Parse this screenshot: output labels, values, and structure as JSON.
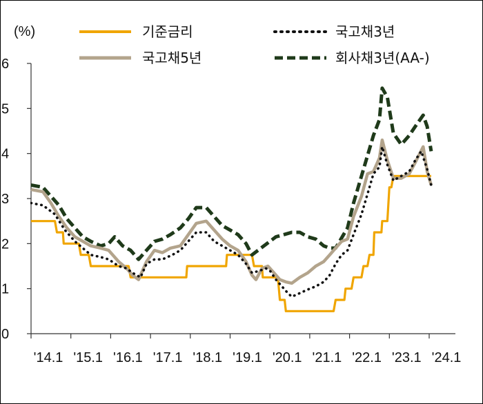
{
  "chart_data": {
    "type": "line",
    "title": "",
    "xlabel": "",
    "ylabel": "(%)",
    "ylim": [
      0,
      6
    ],
    "yticks": [
      "0",
      "1",
      "2",
      "3",
      "4",
      "5",
      "6"
    ],
    "xticks": [
      "'14.1",
      "'15.1",
      "'16.1",
      "'17.1",
      "'18.1",
      "'19.1",
      "'20.1",
      "'21.1",
      "'22.1",
      "'23.1",
      "'24.1"
    ],
    "grid": false,
    "legend_position": "top",
    "series": [
      {
        "name": "기준금리",
        "color": "#F0A500",
        "style": "solid",
        "points": [
          [
            2014.0,
            2.5
          ],
          [
            2014.6,
            2.5
          ],
          [
            2014.65,
            2.25
          ],
          [
            2014.8,
            2.25
          ],
          [
            2014.82,
            2.0
          ],
          [
            2015.2,
            2.0
          ],
          [
            2015.25,
            1.75
          ],
          [
            2015.45,
            1.75
          ],
          [
            2015.5,
            1.5
          ],
          [
            2016.45,
            1.5
          ],
          [
            2016.5,
            1.25
          ],
          [
            2017.9,
            1.25
          ],
          [
            2017.92,
            1.5
          ],
          [
            2018.9,
            1.5
          ],
          [
            2018.92,
            1.75
          ],
          [
            2019.55,
            1.75
          ],
          [
            2019.6,
            1.5
          ],
          [
            2019.8,
            1.5
          ],
          [
            2019.82,
            1.25
          ],
          [
            2020.2,
            1.25
          ],
          [
            2020.25,
            0.75
          ],
          [
            2020.37,
            0.75
          ],
          [
            2020.4,
            0.5
          ],
          [
            2021.6,
            0.5
          ],
          [
            2021.65,
            0.75
          ],
          [
            2021.87,
            0.75
          ],
          [
            2021.9,
            1.0
          ],
          [
            2022.05,
            1.0
          ],
          [
            2022.1,
            1.25
          ],
          [
            2022.3,
            1.25
          ],
          [
            2022.35,
            1.5
          ],
          [
            2022.45,
            1.5
          ],
          [
            2022.5,
            1.75
          ],
          [
            2022.6,
            1.75
          ],
          [
            2022.62,
            2.25
          ],
          [
            2022.8,
            2.25
          ],
          [
            2022.82,
            2.5
          ],
          [
            2022.95,
            2.5
          ],
          [
            2023.0,
            3.25
          ],
          [
            2023.05,
            3.25
          ],
          [
            2023.1,
            3.5
          ],
          [
            2024.05,
            3.5
          ]
        ]
      },
      {
        "name": "국고채3년",
        "color": "#111111",
        "style": "dotted",
        "points": [
          [
            2014.0,
            2.9
          ],
          [
            2014.3,
            2.85
          ],
          [
            2014.6,
            2.65
          ],
          [
            2014.85,
            2.3
          ],
          [
            2015.1,
            2.05
          ],
          [
            2015.3,
            1.9
          ],
          [
            2015.5,
            1.75
          ],
          [
            2015.75,
            1.7
          ],
          [
            2015.95,
            1.65
          ],
          [
            2016.2,
            1.5
          ],
          [
            2016.4,
            1.45
          ],
          [
            2016.55,
            1.35
          ],
          [
            2016.75,
            1.25
          ],
          [
            2016.9,
            1.55
          ],
          [
            2017.1,
            1.65
          ],
          [
            2017.3,
            1.65
          ],
          [
            2017.55,
            1.75
          ],
          [
            2017.75,
            1.85
          ],
          [
            2017.95,
            2.05
          ],
          [
            2018.15,
            2.25
          ],
          [
            2018.4,
            2.25
          ],
          [
            2018.6,
            2.05
          ],
          [
            2018.8,
            1.95
          ],
          [
            2019.0,
            1.85
          ],
          [
            2019.2,
            1.75
          ],
          [
            2019.4,
            1.55
          ],
          [
            2019.55,
            1.35
          ],
          [
            2019.75,
            1.4
          ],
          [
            2019.9,
            1.45
          ],
          [
            2020.0,
            1.4
          ],
          [
            2020.15,
            1.2
          ],
          [
            2020.3,
            1.05
          ],
          [
            2020.45,
            0.9
          ],
          [
            2020.55,
            0.82
          ],
          [
            2020.75,
            0.9
          ],
          [
            2020.95,
            0.98
          ],
          [
            2021.15,
            1.05
          ],
          [
            2021.35,
            1.15
          ],
          [
            2021.5,
            1.3
          ],
          [
            2021.65,
            1.55
          ],
          [
            2021.8,
            1.75
          ],
          [
            2021.95,
            1.85
          ],
          [
            2022.1,
            2.2
          ],
          [
            2022.3,
            2.65
          ],
          [
            2022.45,
            3.1
          ],
          [
            2022.6,
            3.55
          ],
          [
            2022.75,
            3.7
          ],
          [
            2022.82,
            4.15
          ],
          [
            2022.95,
            3.75
          ],
          [
            2023.1,
            3.4
          ],
          [
            2023.3,
            3.5
          ],
          [
            2023.5,
            3.6
          ],
          [
            2023.65,
            3.85
          ],
          [
            2023.8,
            4.05
          ],
          [
            2023.95,
            3.65
          ],
          [
            2024.05,
            3.3
          ]
        ]
      },
      {
        "name": "국고채5년",
        "color": "#B3A48C",
        "style": "solid",
        "points": [
          [
            2014.0,
            3.2
          ],
          [
            2014.3,
            3.15
          ],
          [
            2014.5,
            2.9
          ],
          [
            2014.7,
            2.6
          ],
          [
            2014.9,
            2.35
          ],
          [
            2015.1,
            2.15
          ],
          [
            2015.3,
            2.05
          ],
          [
            2015.5,
            1.95
          ],
          [
            2015.75,
            1.9
          ],
          [
            2015.95,
            1.85
          ],
          [
            2016.2,
            1.6
          ],
          [
            2016.4,
            1.45
          ],
          [
            2016.55,
            1.3
          ],
          [
            2016.7,
            1.2
          ],
          [
            2016.9,
            1.6
          ],
          [
            2017.1,
            1.85
          ],
          [
            2017.3,
            1.8
          ],
          [
            2017.5,
            1.9
          ],
          [
            2017.75,
            1.95
          ],
          [
            2017.95,
            2.2
          ],
          [
            2018.15,
            2.45
          ],
          [
            2018.4,
            2.5
          ],
          [
            2018.6,
            2.3
          ],
          [
            2018.8,
            2.1
          ],
          [
            2019.0,
            1.95
          ],
          [
            2019.2,
            1.85
          ],
          [
            2019.4,
            1.6
          ],
          [
            2019.55,
            1.3
          ],
          [
            2019.65,
            1.2
          ],
          [
            2019.8,
            1.45
          ],
          [
            2019.95,
            1.5
          ],
          [
            2020.1,
            1.35
          ],
          [
            2020.25,
            1.2
          ],
          [
            2020.4,
            1.15
          ],
          [
            2020.55,
            1.12
          ],
          [
            2020.75,
            1.25
          ],
          [
            2020.95,
            1.35
          ],
          [
            2021.15,
            1.5
          ],
          [
            2021.35,
            1.6
          ],
          [
            2021.5,
            1.75
          ],
          [
            2021.65,
            1.9
          ],
          [
            2021.8,
            2.05
          ],
          [
            2021.95,
            2.1
          ],
          [
            2022.1,
            2.6
          ],
          [
            2022.3,
            3.05
          ],
          [
            2022.45,
            3.55
          ],
          [
            2022.6,
            3.6
          ],
          [
            2022.75,
            3.9
          ],
          [
            2022.82,
            4.3
          ],
          [
            2022.95,
            3.85
          ],
          [
            2023.1,
            3.45
          ],
          [
            2023.3,
            3.45
          ],
          [
            2023.5,
            3.55
          ],
          [
            2023.65,
            3.8
          ],
          [
            2023.85,
            4.15
          ],
          [
            2023.95,
            3.6
          ],
          [
            2024.05,
            3.3
          ]
        ]
      },
      {
        "name": "회사채3년(AA-)",
        "color": "#1F3A1A",
        "style": "dashed",
        "points": [
          [
            2014.0,
            3.3
          ],
          [
            2014.3,
            3.25
          ],
          [
            2014.5,
            3.05
          ],
          [
            2014.7,
            2.85
          ],
          [
            2014.9,
            2.55
          ],
          [
            2015.1,
            2.35
          ],
          [
            2015.3,
            2.15
          ],
          [
            2015.5,
            2.05
          ],
          [
            2015.75,
            1.95
          ],
          [
            2015.95,
            2.0
          ],
          [
            2016.1,
            2.15
          ],
          [
            2016.3,
            1.95
          ],
          [
            2016.5,
            1.85
          ],
          [
            2016.7,
            1.65
          ],
          [
            2016.9,
            1.85
          ],
          [
            2017.1,
            2.05
          ],
          [
            2017.3,
            2.1
          ],
          [
            2017.5,
            2.2
          ],
          [
            2017.75,
            2.35
          ],
          [
            2017.95,
            2.55
          ],
          [
            2018.15,
            2.8
          ],
          [
            2018.4,
            2.8
          ],
          [
            2018.6,
            2.6
          ],
          [
            2018.8,
            2.4
          ],
          [
            2019.0,
            2.3
          ],
          [
            2019.2,
            2.2
          ],
          [
            2019.4,
            2.0
          ],
          [
            2019.55,
            1.75
          ],
          [
            2019.7,
            1.85
          ],
          [
            2019.85,
            1.95
          ],
          [
            2020.0,
            2.05
          ],
          [
            2020.15,
            2.15
          ],
          [
            2020.35,
            2.2
          ],
          [
            2020.55,
            2.25
          ],
          [
            2020.75,
            2.25
          ],
          [
            2020.95,
            2.15
          ],
          [
            2021.15,
            2.1
          ],
          [
            2021.35,
            1.95
          ],
          [
            2021.5,
            1.9
          ],
          [
            2021.65,
            1.9
          ],
          [
            2021.85,
            2.2
          ],
          [
            2021.95,
            2.35
          ],
          [
            2022.1,
            2.9
          ],
          [
            2022.3,
            3.5
          ],
          [
            2022.45,
            3.95
          ],
          [
            2022.6,
            4.4
          ],
          [
            2022.75,
            4.75
          ],
          [
            2022.82,
            5.45
          ],
          [
            2022.95,
            5.25
          ],
          [
            2023.1,
            4.45
          ],
          [
            2023.3,
            4.2
          ],
          [
            2023.5,
            4.4
          ],
          [
            2023.65,
            4.6
          ],
          [
            2023.85,
            4.85
          ],
          [
            2023.95,
            4.6
          ],
          [
            2024.05,
            4.05
          ]
        ]
      }
    ]
  }
}
